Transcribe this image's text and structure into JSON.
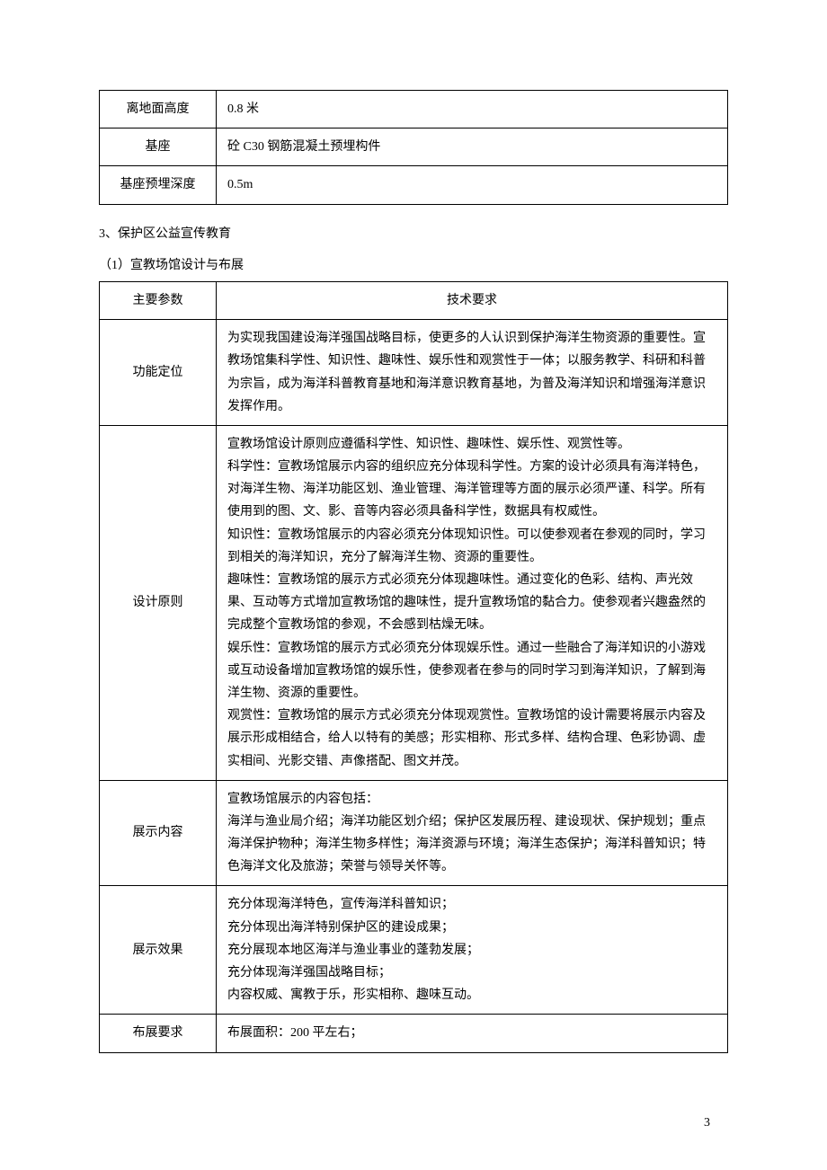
{
  "table1": {
    "rows": [
      {
        "label": "离地面高度",
        "value": "0.8 米"
      },
      {
        "label": "基座",
        "value": "砼 C30 钢筋混凝土预埋构件"
      },
      {
        "label": "基座预埋深度",
        "value": "0.5m"
      }
    ]
  },
  "section3": {
    "heading": "3、保护区公益宣传教育",
    "subheading": "（1）宣教场馆设计与布展"
  },
  "table2": {
    "header": {
      "col1": "主要参数",
      "col2": "技术要求"
    },
    "rows": [
      {
        "label": "功能定位",
        "value": "为实现我国建设海洋强国战略目标，使更多的人认识到保护海洋生物资源的重要性。宣教场馆集科学性、知识性、趣味性、娱乐性和观赏性于一体；以服务教学、科研和科普为宗旨，成为海洋科普教育基地和海洋意识教育基地，为普及海洋知识和增强海洋意识发挥作用。"
      },
      {
        "label": "设计原则",
        "value": "宣教场馆设计原则应遵循科学性、知识性、趣味性、娱乐性、观赏性等。\n科学性：宣教场馆展示内容的组织应充分体现科学性。方案的设计必须具有海洋特色，对海洋生物、海洋功能区划、渔业管理、海洋管理等方面的展示必须严谨、科学。所有使用到的图、文、影、音等内容必须具备科学性，数据具有权威性。\n知识性：宣教场馆展示的内容必须充分体现知识性。可以使参观者在参观的同时，学习到相关的海洋知识，充分了解海洋生物、资源的重要性。\n趣味性：宣教场馆的展示方式必须充分体现趣味性。通过变化的色彩、结构、声光效果、互动等方式增加宣教场馆的趣味性，提升宣教场馆的黏合力。使参观者兴趣盎然的完成整个宣教场馆的参观，不会感到枯燥无味。\n娱乐性：宣教场馆的展示方式必须充分体现娱乐性。通过一些融合了海洋知识的小游戏或互动设备增加宣教场馆的娱乐性，使参观者在参与的同时学习到海洋知识，了解到海洋生物、资源的重要性。\n观赏性：宣教场馆的展示方式必须充分体现观赏性。宣教场馆的设计需要将展示内容及展示形成相结合，给人以特有的美感；形实相称、形式多样、结构合理、色彩协调、虚实相间、光影交错、声像搭配、图文并茂。"
      },
      {
        "label": "展示内容",
        "value": "宣教场馆展示的内容包括：\n海洋与渔业局介绍；海洋功能区划介绍；保护区发展历程、建设现状、保护规划；重点海洋保护物种；海洋生物多样性；海洋资源与环境；海洋生态保护；海洋科普知识；特色海洋文化及旅游；荣誉与领导关怀等。"
      },
      {
        "label": "展示效果",
        "value": "充分体现海洋特色，宣传海洋科普知识；\n充分体现出海洋特别保护区的建设成果；\n充分展现本地区海洋与渔业事业的蓬勃发展；\n充分体现海洋强国战略目标；\n内容权威、寓教于乐，形实相称、趣味互动。"
      },
      {
        "label": "布展要求",
        "value": "布展面积：200 平左右；"
      }
    ]
  },
  "page_number": "3"
}
